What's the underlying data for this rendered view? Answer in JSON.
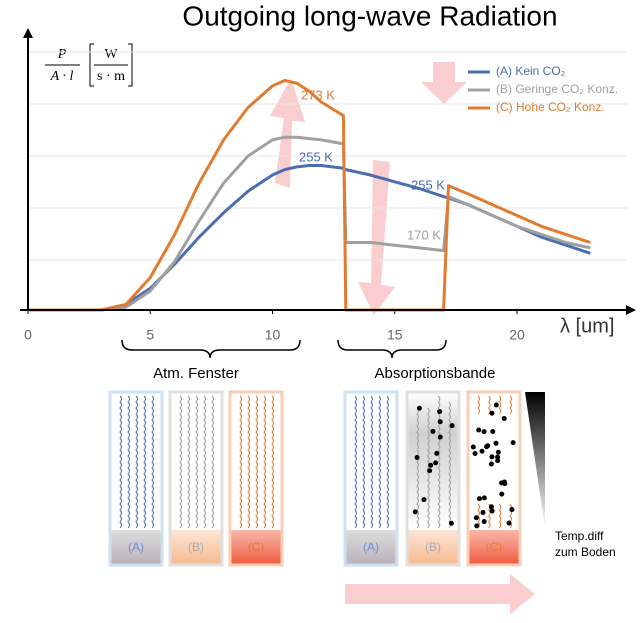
{
  "chart_data": {
    "type": "line",
    "title": "Outgoing long-wave Radiation",
    "y_label": {
      "numerator": "P",
      "denominator": "A · l",
      "unit_numerator": "W",
      "unit_denominator": "s · m"
    },
    "x_label": "λ [um]",
    "x": [
      0,
      3,
      4,
      5,
      6,
      7,
      8,
      9,
      10,
      10.5,
      11,
      11.5,
      12,
      12.9,
      13,
      14,
      15,
      16,
      17,
      17.2,
      18,
      19,
      20,
      21,
      22,
      23
    ],
    "xlim": [
      0,
      24.5
    ],
    "xticks": [
      0,
      5,
      10,
      15,
      20
    ],
    "ylim": [
      0,
      100
    ],
    "series": [
      {
        "name": "(A) Kein CO₂",
        "color": "#4a6fb0",
        "values": [
          0,
          0,
          2,
          8,
          17,
          27,
          36,
          44,
          50,
          52,
          53,
          53.5,
          53.5,
          52.5,
          52,
          50,
          47.5,
          45,
          42,
          41.5,
          39,
          35,
          31,
          27,
          24,
          21
        ]
      },
      {
        "name": "(B) Geringe CO₂ Konz.",
        "color": "#a0a0a0",
        "values": [
          0,
          0,
          1,
          7,
          18,
          33,
          47,
          57,
          63,
          64,
          64,
          63.5,
          63,
          61.5,
          25,
          25,
          24,
          23,
          22,
          42,
          39,
          35,
          31,
          28,
          25,
          23
        ]
      },
      {
        "name": "(C) Hohe CO₂ Konz.",
        "color": "#e07b30",
        "values": [
          0,
          0,
          2,
          12,
          28,
          47,
          63,
          75,
          83,
          85,
          84,
          81,
          77,
          72,
          0,
          0,
          0,
          0,
          0,
          46,
          43,
          39,
          35,
          31,
          28,
          25
        ]
      }
    ],
    "annotations": [
      "273 K",
      "255 K",
      "255 K",
      "170 K"
    ]
  },
  "diagram": {
    "window_label": "Atm. Fenster",
    "band_label": "Absorptionsbande",
    "box_labels": [
      "(A)",
      "(B)",
      "(C)"
    ],
    "temp_label": [
      "Temp.diff",
      "zum Boden"
    ]
  }
}
